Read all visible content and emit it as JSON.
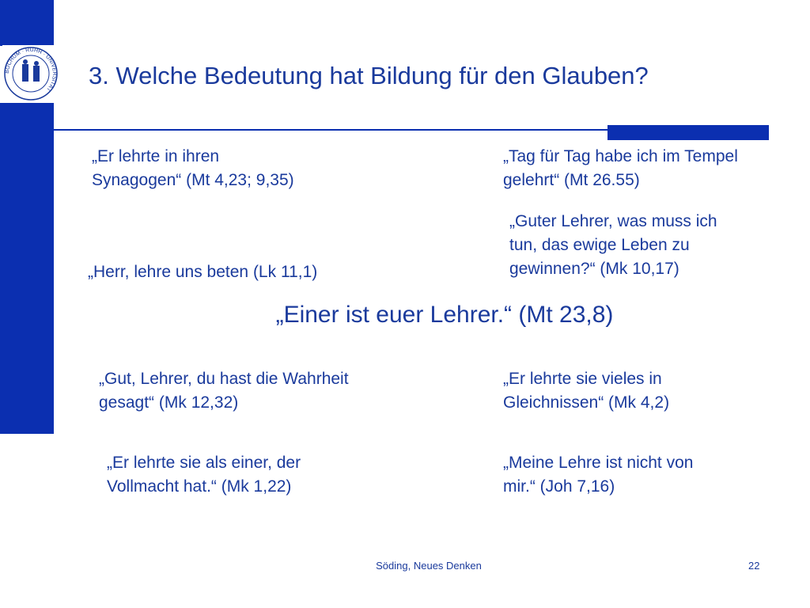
{
  "slide": {
    "title": "3. Welche Bedeutung hat Bildung für den Glauben?",
    "quotes": [
      "„Er lehrte in ihren\nSynagogen“ (Mt 4,23; 9,35)",
      "„Tag für Tag habe ich im Tempel\ngelehrt“ (Mt 26.55)",
      "„Guter Lehrer, was muss ich\ntun, das ewige Leben zu\ngewinnen?“ (Mk 10,17)",
      "„Herr, lehre uns beten (Lk 11,1)",
      "„Gut, Lehrer, du hast die Wahrheit\ngesagt“ (Mk 12,32)",
      "„Er lehrte sie vieles in\nGleichnissen“ (Mk 4,2)",
      "„Er lehrte sie als einer, der\nVollmacht hat.“ (Mk 1,22)",
      "„Meine Lehre ist nicht von\nmir.“ (Joh 7,16)"
    ],
    "center_quote": "„Einer ist euer Lehrer.“ (Mt 23,8)"
  },
  "seal": {
    "text": "BOCHUM · RUHR · UNIVERSITÄT",
    "icon": "university-seal-icon"
  },
  "footer": {
    "text": "Söding, Neues Denken",
    "page": "22"
  },
  "colors": {
    "accent": "#0b2fb0",
    "text": "#1a3a9c",
    "background": "#ffffff"
  }
}
